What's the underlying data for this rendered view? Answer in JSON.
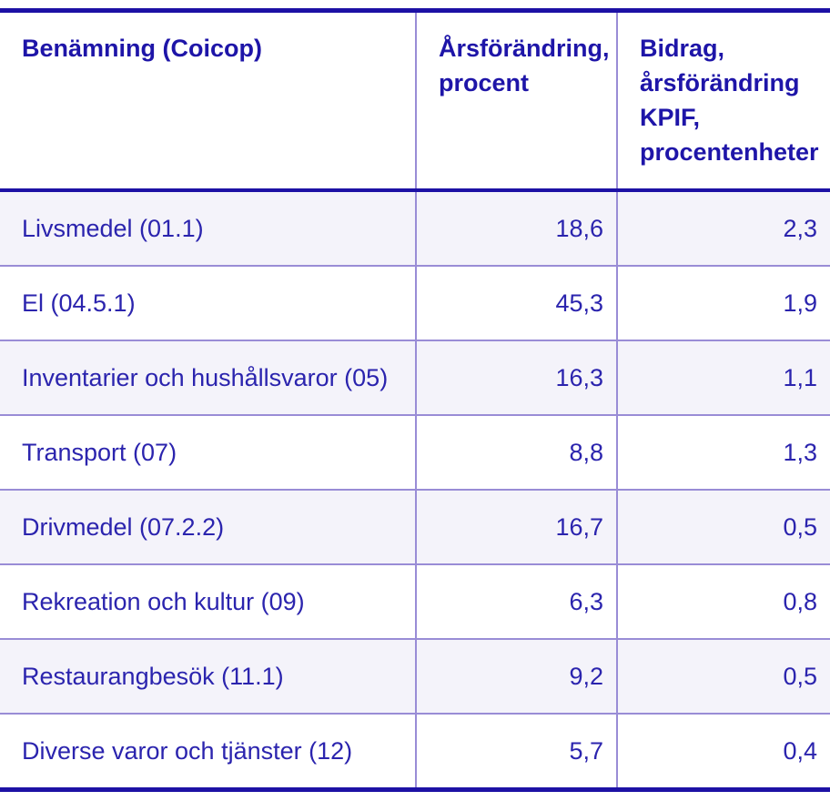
{
  "colors": {
    "accent_dark_blue": "#1D11A5",
    "header_text_blue": "#1E15A8",
    "body_text_blue": "#2B24AE",
    "divider_light_purple": "#998CD6",
    "row_stripe_lavender": "#F4F3FA"
  },
  "chart_data": {
    "type": "table",
    "columns": [
      "Benämning (Coicop)",
      "Årsförändring, procent",
      "Bidrag, årsförändring KPIF, procentenheter"
    ],
    "rows": [
      {
        "name": "Livsmedel (01.1)",
        "yearly_change": "18,6",
        "contribution": "2,3"
      },
      {
        "name": "El (04.5.1)",
        "yearly_change": "45,3",
        "contribution": "1,9"
      },
      {
        "name": "Inventarier och hushållsvaror (05)",
        "yearly_change": "16,3",
        "contribution": "1,1"
      },
      {
        "name": "Transport (07)",
        "yearly_change": "8,8",
        "contribution": "1,3"
      },
      {
        "name": "Drivmedel (07.2.2)",
        "yearly_change": "16,7",
        "contribution": "0,5"
      },
      {
        "name": "Rekreation och kultur (09)",
        "yearly_change": "6,3",
        "contribution": "0,8"
      },
      {
        "name": "Restaurangbesök (11.1)",
        "yearly_change": "9,2",
        "contribution": "0,5"
      },
      {
        "name": "Diverse varor och tjänster (12)",
        "yearly_change": "5,7",
        "contribution": "0,4"
      }
    ]
  }
}
